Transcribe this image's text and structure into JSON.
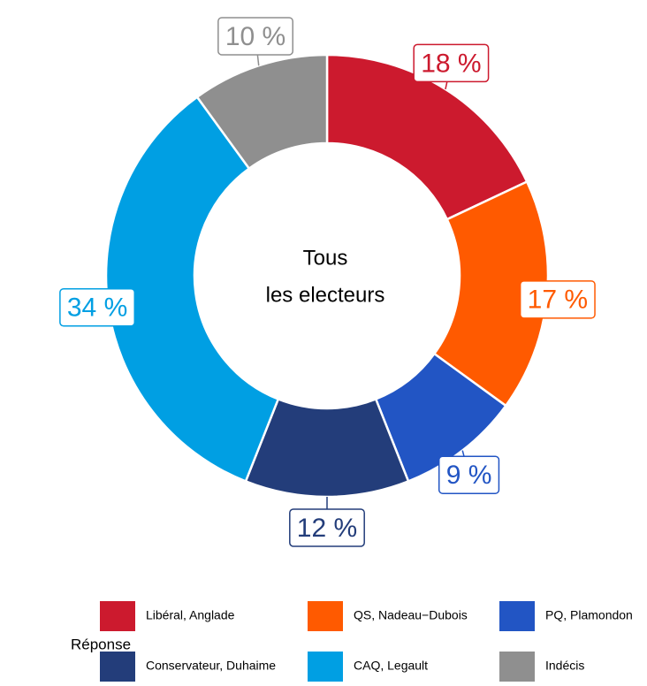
{
  "chart_data": {
    "type": "donut",
    "center_text": [
      "Tous",
      "les electeurs"
    ],
    "categories": [
      "Libéral, Anglade",
      "QS, Nadeau−Dubois",
      "PQ, Plamondon",
      "Conservateur, Duhaime",
      "CAQ, Legault",
      "Indécis"
    ],
    "values": [
      18,
      17,
      9,
      12,
      34,
      10
    ],
    "value_labels": [
      "18 %",
      "17 %",
      "9 %",
      "12 %",
      "34 %",
      "10 %"
    ],
    "colors": [
      "#cc1a2e",
      "#ff5a00",
      "#2255c4",
      "#233d7a",
      "#009fe3",
      "#8f8f8f"
    ],
    "legend_title": "Réponse"
  }
}
